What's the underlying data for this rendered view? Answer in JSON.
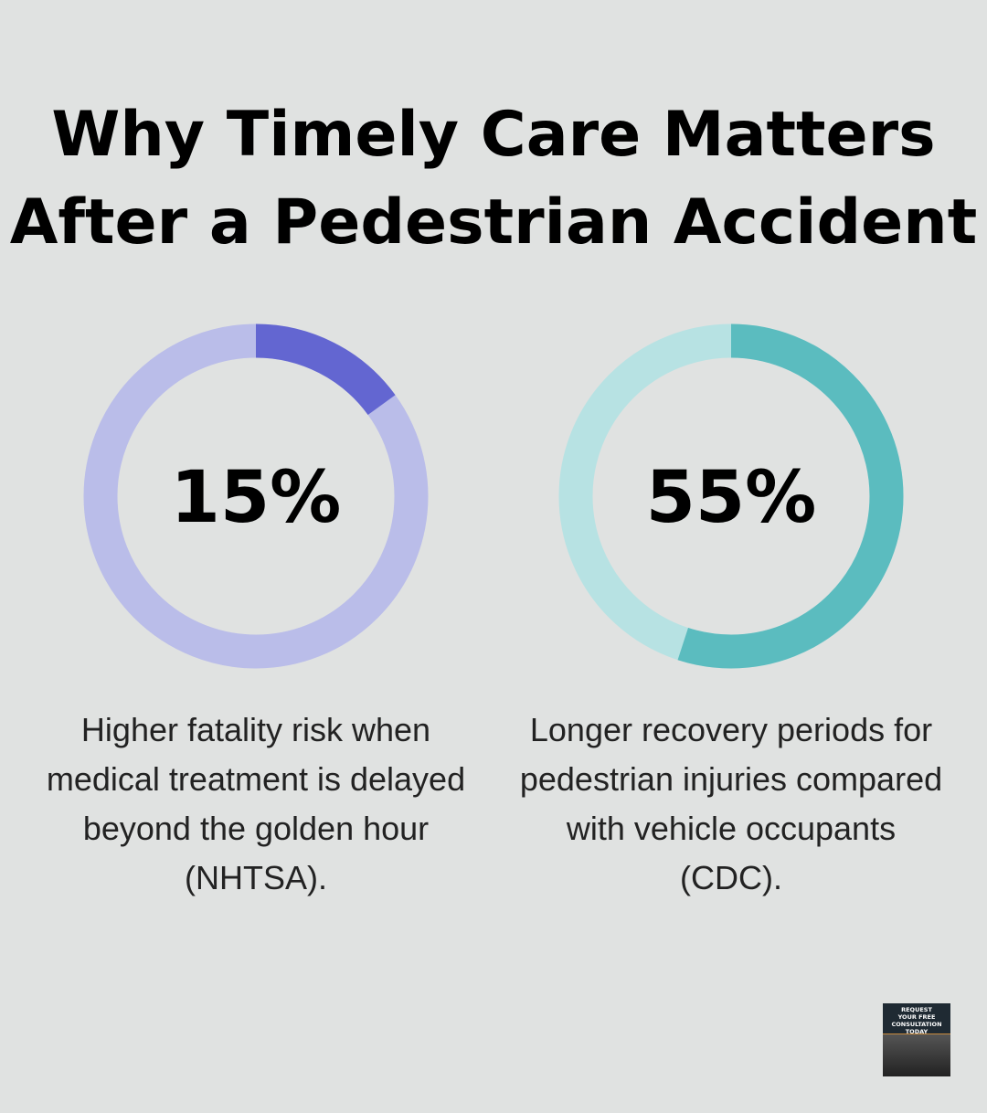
{
  "title_line1": "Why Timely Care Matters",
  "title_line2": "After a Pedestrian Accident",
  "chart_data": [
    {
      "type": "pie",
      "variant": "donut",
      "value": 15,
      "max": 100,
      "label": "15%",
      "description": "Higher fatality risk when medical treatment is delayed beyond the golden hour (NHTSA).",
      "colors": {
        "fill": "#6366d1",
        "track": "#babde9"
      }
    },
    {
      "type": "pie",
      "variant": "donut",
      "value": 55,
      "max": 100,
      "label": "55%",
      "description": "Longer recovery periods for pedestrian injuries compared with vehicle occupants (CDC).",
      "colors": {
        "fill": "#5bbcbf",
        "track": "#b7e2e3"
      }
    }
  ],
  "logo": {
    "text": "REQUEST YOUR FREE CONSULTATION TODAY"
  }
}
